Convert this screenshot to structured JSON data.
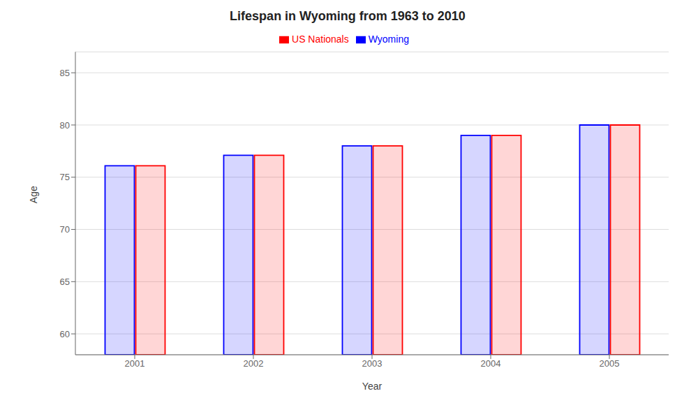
{
  "chart_data": {
    "type": "bar",
    "title": "Lifespan in Wyoming from 1963 to 2010",
    "x_label": "Year",
    "y_label": "Age",
    "categories": [
      "2001",
      "2002",
      "2003",
      "2004",
      "2005"
    ],
    "series": [
      {
        "name": "Wyoming",
        "color": "#0000ff",
        "values": [
          76.1,
          77.1,
          78.0,
          79.0,
          80.0
        ]
      },
      {
        "name": "US Nationals",
        "color": "#ff0000",
        "values": [
          76.1,
          77.1,
          78.0,
          79.0,
          80.0
        ]
      }
    ],
    "ylim": [
      58,
      87
    ],
    "yticks": [
      60,
      65,
      70,
      75,
      80,
      85
    ],
    "grid": true,
    "legend": "top"
  }
}
